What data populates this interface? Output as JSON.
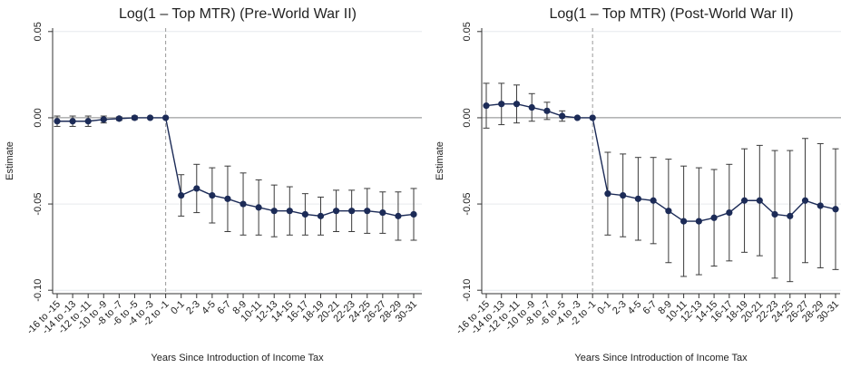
{
  "chart_data": [
    {
      "type": "line",
      "title": "Log(1 – Top MTR) (Pre-World War II)",
      "x_label": "Years Since Introduction of Income Tax",
      "y_label": "Estimate",
      "categories": [
        "-16 to -15",
        "-14 to -13",
        "-12 to -11",
        "-10 to -9",
        "-8 to -7",
        "-6 to -5",
        "-4 to -3",
        "-2 to -1",
        "0-1",
        "2-3",
        "4-5",
        "6-7",
        "8-9",
        "10-11",
        "12-13",
        "14-15",
        "16-17",
        "18-19",
        "20-21",
        "22-23",
        "24-25",
        "26-27",
        "28-29",
        "30-31"
      ],
      "values": [
        -0.002,
        -0.002,
        -0.002,
        -0.001,
        -0.0005,
        0,
        0,
        0,
        -0.045,
        -0.041,
        -0.045,
        -0.047,
        -0.05,
        -0.052,
        -0.054,
        -0.054,
        -0.056,
        -0.057,
        -0.054,
        -0.054,
        -0.054,
        -0.055,
        -0.057,
        -0.056
      ],
      "errors": [
        0.003,
        0.003,
        0.003,
        0.002,
        0.001,
        0.001,
        0,
        0,
        0.012,
        0.014,
        0.016,
        0.019,
        0.018,
        0.016,
        0.015,
        0.014,
        0.012,
        0.011,
        0.012,
        0.012,
        0.013,
        0.012,
        0.014,
        0.015
      ],
      "color": "#1c2b57",
      "error_color": "#3a3a3a",
      "ylim": [
        -0.102,
        0.052
      ],
      "yticks": [
        0.05,
        {
          "value": 0,
          "label": "0.00"
        },
        -0.05,
        {
          "value": -0.1,
          "label": "-0.10"
        }
      ],
      "grid": true,
      "reference_lines": {
        "y": 0,
        "x": "-2 to -1"
      }
    },
    {
      "type": "line",
      "title": "Log(1 – Top MTR) (Post-World War II)",
      "x_label": "Years Since Introduction of Income Tax",
      "y_label": "Estimate",
      "categories": [
        "-16 to -15",
        "-14 to -13",
        "-12 to -11",
        "-10 to -9",
        "-8 to -7",
        "-6 to -5",
        "-4 to -3",
        "-2 to -1",
        "0-1",
        "2-3",
        "4-5",
        "6-7",
        "8-9",
        "10-11",
        "12-13",
        "14-15",
        "16-17",
        "18-19",
        "20-21",
        "22-23",
        "24-25",
        "26-27",
        "28-29",
        "30-31"
      ],
      "values": [
        0.007,
        0.008,
        0.008,
        0.006,
        0.004,
        0.001,
        0,
        0,
        -0.044,
        -0.045,
        -0.047,
        -0.048,
        -0.054,
        -0.06,
        -0.06,
        -0.058,
        -0.055,
        -0.048,
        -0.048,
        -0.056,
        -0.057,
        -0.048,
        -0.051,
        -0.053
      ],
      "errors": [
        0.013,
        0.012,
        0.011,
        0.008,
        0.005,
        0.003,
        0,
        0,
        0.024,
        0.024,
        0.024,
        0.025,
        0.03,
        0.032,
        0.031,
        0.028,
        0.028,
        0.03,
        0.032,
        0.037,
        0.038,
        0.036,
        0.036,
        0.035
      ],
      "color": "#1c2b57",
      "error_color": "#3a3a3a",
      "ylim": [
        -0.102,
        0.052
      ],
      "yticks": [
        0.05,
        {
          "value": 0,
          "label": "0.00"
        },
        -0.05,
        {
          "value": -0.1,
          "label": "-0.10"
        }
      ],
      "grid": true,
      "reference_lines": {
        "y": 0,
        "x": "-2 to -1"
      }
    }
  ]
}
